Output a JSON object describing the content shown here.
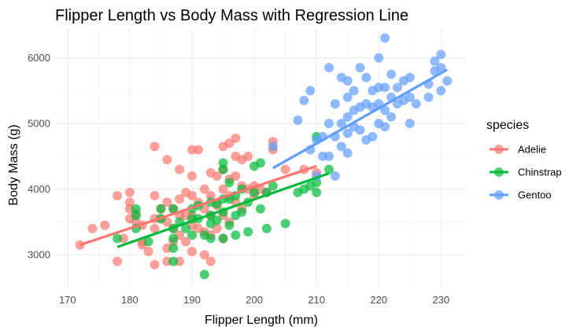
{
  "chart_data": {
    "type": "scatter",
    "title": "Flipper Length vs Body Mass with Regression Line",
    "xlabel": "Flipper Length (mm)",
    "ylabel": "Body Mass (g)",
    "xlim": [
      168,
      234
    ],
    "ylim": [
      2500,
      6450
    ],
    "x_ticks": [
      170,
      180,
      190,
      200,
      210,
      220,
      230
    ],
    "y_ticks": [
      3000,
      4000,
      5000,
      6000
    ],
    "grid": true,
    "legend": {
      "title": "species",
      "position": "right"
    },
    "series": [
      {
        "name": "Adelie",
        "color": "#F8766D",
        "points": [
          [
            172,
            3150
          ],
          [
            174,
            3400
          ],
          [
            176,
            3450
          ],
          [
            178,
            3900
          ],
          [
            178,
            2900
          ],
          [
            179,
            3250
          ],
          [
            180,
            3950
          ],
          [
            180,
            3800
          ],
          [
            180,
            3700
          ],
          [
            180,
            3550
          ],
          [
            181,
            3625
          ],
          [
            181,
            3500
          ],
          [
            182,
            3200
          ],
          [
            182,
            3150
          ],
          [
            182,
            3450
          ],
          [
            183,
            3050
          ],
          [
            184,
            4650
          ],
          [
            184,
            3900
          ],
          [
            184,
            3550
          ],
          [
            184,
            3400
          ],
          [
            184,
            2850
          ],
          [
            185,
            3700
          ],
          [
            185,
            3550
          ],
          [
            186,
            4450
          ],
          [
            186,
            3800
          ],
          [
            186,
            3500
          ],
          [
            186,
            3100
          ],
          [
            186,
            2900
          ],
          [
            187,
            3700
          ],
          [
            187,
            3400
          ],
          [
            187,
            3200
          ],
          [
            188,
            4300
          ],
          [
            188,
            3850
          ],
          [
            188,
            3600
          ],
          [
            188,
            3300
          ],
          [
            188,
            2900
          ],
          [
            189,
            3950
          ],
          [
            189,
            3600
          ],
          [
            189,
            3200
          ],
          [
            190,
            4600
          ],
          [
            190,
            4200
          ],
          [
            190,
            3900
          ],
          [
            190,
            3600
          ],
          [
            190,
            3450
          ],
          [
            190,
            3050
          ],
          [
            191,
            4600
          ],
          [
            191,
            3800
          ],
          [
            191,
            3400
          ],
          [
            192,
            4000
          ],
          [
            192,
            3700
          ],
          [
            192,
            3350
          ],
          [
            192,
            3000
          ],
          [
            193,
            4250
          ],
          [
            193,
            3900
          ],
          [
            193,
            3600
          ],
          [
            193,
            3300
          ],
          [
            193,
            2900
          ],
          [
            194,
            4200
          ],
          [
            194,
            3750
          ],
          [
            194,
            3400
          ],
          [
            195,
            4650
          ],
          [
            195,
            4300
          ],
          [
            195,
            4000
          ],
          [
            195,
            3600
          ],
          [
            195,
            3250
          ],
          [
            196,
            4700
          ],
          [
            196,
            4150
          ],
          [
            196,
            3900
          ],
          [
            196,
            3500
          ],
          [
            197,
            4775
          ],
          [
            197,
            4500
          ],
          [
            197,
            4200
          ],
          [
            197,
            3800
          ],
          [
            198,
            4450
          ],
          [
            198,
            4050
          ],
          [
            198,
            3700
          ],
          [
            199,
            4500
          ],
          [
            199,
            4000
          ],
          [
            200,
            4050
          ],
          [
            200,
            3900
          ],
          [
            201,
            4000
          ],
          [
            202,
            3950
          ],
          [
            203,
            4725
          ],
          [
            203,
            4600
          ],
          [
            205,
            4300
          ],
          [
            208,
            4300
          ],
          [
            210,
            4250
          ]
        ],
        "trend": [
          [
            172,
            3150
          ],
          [
            210,
            4350
          ]
        ]
      },
      {
        "name": "Chinstrap",
        "color": "#00BA38",
        "points": [
          [
            178,
            3250
          ],
          [
            181,
            3700
          ],
          [
            181,
            3600
          ],
          [
            181,
            3400
          ],
          [
            183,
            3200
          ],
          [
            185,
            3700
          ],
          [
            185,
            3550
          ],
          [
            187,
            3700
          ],
          [
            187,
            3400
          ],
          [
            187,
            3250
          ],
          [
            187,
            3100
          ],
          [
            187,
            2900
          ],
          [
            188,
            3500
          ],
          [
            189,
            3400
          ],
          [
            190,
            3700
          ],
          [
            190,
            3550
          ],
          [
            190,
            3300
          ],
          [
            191,
            3750
          ],
          [
            191,
            3550
          ],
          [
            192,
            3300
          ],
          [
            192,
            2700
          ],
          [
            193,
            3800
          ],
          [
            193,
            3600
          ],
          [
            193,
            3475
          ],
          [
            193,
            3250
          ],
          [
            194,
            3775
          ],
          [
            194,
            3525
          ],
          [
            195,
            4400
          ],
          [
            195,
            4300
          ],
          [
            195,
            3850
          ],
          [
            195,
            3650
          ],
          [
            195,
            3250
          ],
          [
            196,
            4100
          ],
          [
            196,
            3850
          ],
          [
            196,
            3450
          ],
          [
            197,
            3900
          ],
          [
            197,
            3600
          ],
          [
            197,
            3300
          ],
          [
            198,
            4000
          ],
          [
            198,
            3650
          ],
          [
            199,
            3800
          ],
          [
            199,
            3350
          ],
          [
            200,
            4350
          ],
          [
            200,
            3950
          ],
          [
            201,
            4400
          ],
          [
            201,
            3700
          ],
          [
            202,
            3950
          ],
          [
            202,
            3400
          ],
          [
            203,
            4050
          ],
          [
            205,
            3475
          ],
          [
            207,
            3950
          ],
          [
            208,
            4000
          ],
          [
            209,
            4050
          ],
          [
            210,
            4800
          ],
          [
            210,
            4100
          ],
          [
            210,
            3950
          ],
          [
            212,
            4300
          ]
        ],
        "trend": [
          [
            178,
            3120
          ],
          [
            212,
            4240
          ]
        ]
      },
      {
        "name": "Gentoo",
        "color": "#619CFF",
        "points": [
          [
            203,
            4650
          ],
          [
            207,
            5050
          ],
          [
            208,
            5350
          ],
          [
            209,
            5500
          ],
          [
            209,
            4600
          ],
          [
            210,
            4750
          ],
          [
            210,
            4200
          ],
          [
            211,
            4800
          ],
          [
            211,
            4500
          ],
          [
            212,
            5850
          ],
          [
            212,
            5000
          ],
          [
            212,
            4500
          ],
          [
            213,
            5300
          ],
          [
            213,
            4800
          ],
          [
            213,
            4200
          ],
          [
            214,
            5700
          ],
          [
            214,
            5000
          ],
          [
            214,
            4650
          ],
          [
            215,
            5650
          ],
          [
            215,
            5400
          ],
          [
            215,
            5100
          ],
          [
            215,
            4850
          ],
          [
            215,
            4550
          ],
          [
            216,
            5500
          ],
          [
            216,
            5200
          ],
          [
            216,
            4950
          ],
          [
            217,
            5850
          ],
          [
            217,
            5250
          ],
          [
            217,
            4900
          ],
          [
            218,
            5700
          ],
          [
            218,
            5300
          ],
          [
            218,
            4750
          ],
          [
            219,
            5500
          ],
          [
            219,
            5250
          ],
          [
            219,
            4800
          ],
          [
            220,
            6000
          ],
          [
            220,
            5550
          ],
          [
            220,
            5300
          ],
          [
            220,
            5000
          ],
          [
            221,
            6300
          ],
          [
            221,
            5550
          ],
          [
            221,
            5200
          ],
          [
            221,
            4950
          ],
          [
            222,
            5750
          ],
          [
            222,
            5400
          ],
          [
            222,
            5100
          ],
          [
            223,
            5550
          ],
          [
            223,
            5300
          ],
          [
            224,
            5650
          ],
          [
            224,
            5350
          ],
          [
            225,
            5700
          ],
          [
            225,
            5400
          ],
          [
            225,
            5000
          ],
          [
            226,
            5300
          ],
          [
            228,
            5600
          ],
          [
            228,
            5400
          ],
          [
            229,
            5950
          ],
          [
            229,
            5800
          ],
          [
            230,
            6050
          ],
          [
            230,
            5850
          ],
          [
            230,
            5500
          ],
          [
            231,
            5650
          ]
        ],
        "trend": [
          [
            203,
            4320
          ],
          [
            231,
            5820
          ]
        ]
      }
    ]
  }
}
